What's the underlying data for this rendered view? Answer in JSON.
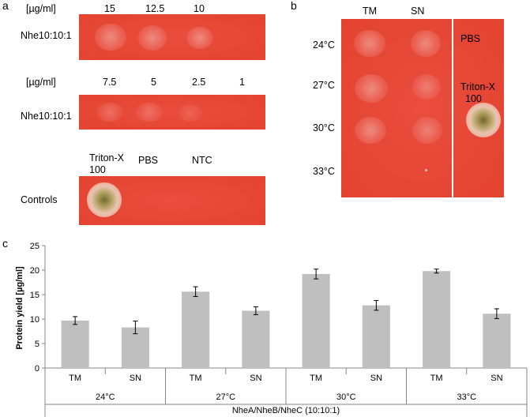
{
  "panel_a": {
    "letter": "a",
    "row1": {
      "unit": "[µg/ml]",
      "concentrations": [
        "15",
        "12.5",
        "10"
      ],
      "label": "Nhe10:10:1"
    },
    "row2": {
      "unit": "[µg/ml]",
      "concentrations": [
        "7.5",
        "5",
        "2.5",
        "1"
      ],
      "label": "Nhe10:10:1"
    },
    "controls": {
      "col1_line1": "Triton-X",
      "col1_line2": "100",
      "col2": "PBS",
      "col3": "NTC",
      "label": "Controls"
    }
  },
  "panel_b": {
    "letter": "b",
    "columns": [
      "TM",
      "SN"
    ],
    "temps": [
      "24°C",
      "27°C",
      "30°C",
      "33°C"
    ],
    "pbs": "PBS",
    "triton_line1": "Triton-X",
    "triton_line2": "100"
  },
  "panel_c": {
    "letter": "c"
  },
  "chart_data": {
    "type": "bar",
    "ylabel": "Protein yield [µg/ml]",
    "xlabel": "NheA/NheB/NheC (10:10:1)",
    "ylim": [
      0,
      25
    ],
    "yticks": [
      0,
      5,
      10,
      15,
      20,
      25
    ],
    "groups": [
      "24°C",
      "27°C",
      "30°C",
      "33°C"
    ],
    "categories": [
      "TM",
      "SN",
      "TM",
      "SN",
      "TM",
      "SN",
      "TM",
      "SN"
    ],
    "values": [
      9.7,
      8.3,
      15.6,
      11.7,
      19.2,
      12.8,
      19.8,
      11.1
    ],
    "errors": [
      0.8,
      1.3,
      1.0,
      0.8,
      1.0,
      1.0,
      0.4,
      1.0
    ],
    "bar_color": "#bfbfbf",
    "grid": false
  }
}
